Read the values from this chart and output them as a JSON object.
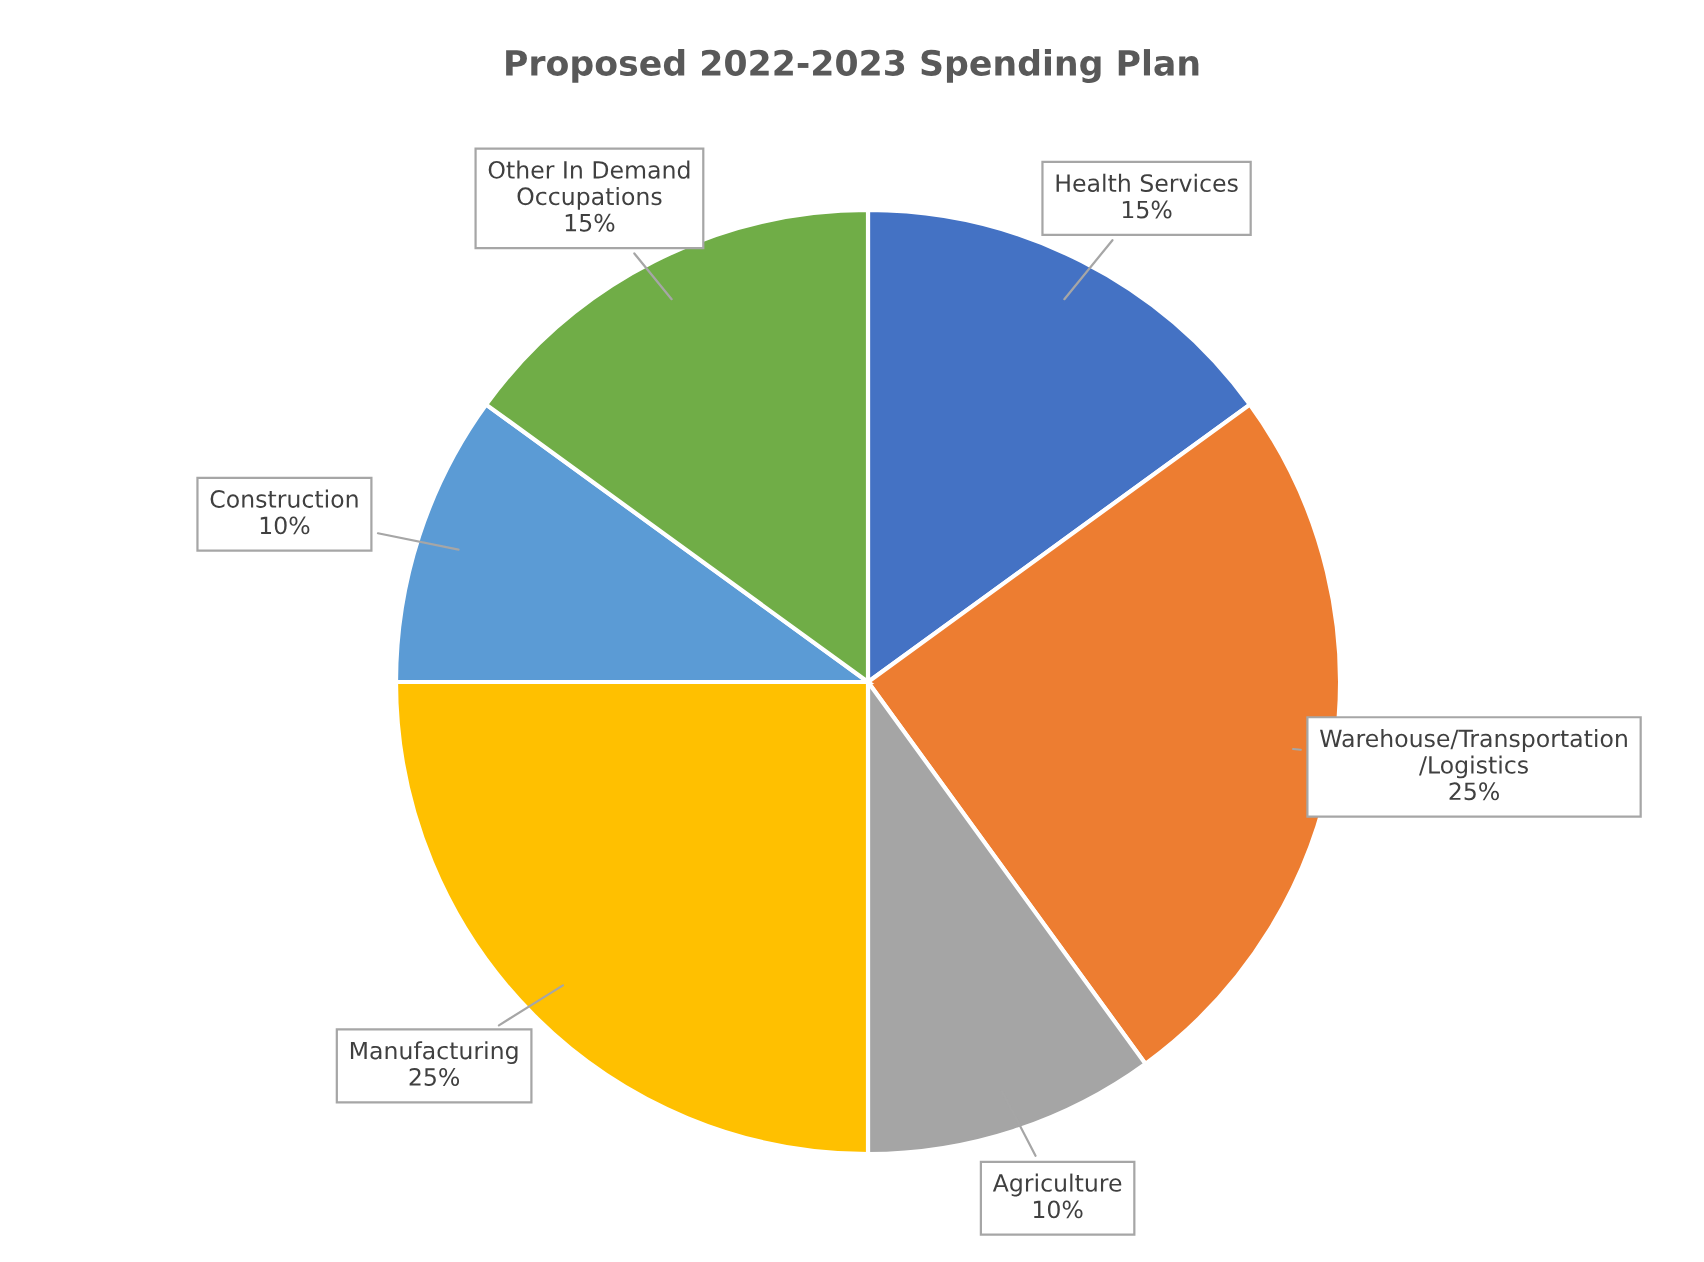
{
  "chart_data": {
    "type": "pie",
    "title": "Proposed 2022-2023 Spending Plan",
    "categories": [
      "Health Services",
      "Warehouse/Transportation\n/Logistics",
      "Agriculture",
      "Manufacturing",
      "Construction",
      "Other In Demand\nOccupations"
    ],
    "values": [
      15,
      25,
      10,
      25,
      10,
      15
    ],
    "colors": [
      "#4472c4",
      "#ed7d31",
      "#a5a5a5",
      "#ffc000",
      "#5b9bd5",
      "#70ad47"
    ],
    "value_labels": [
      "15%",
      "25%",
      "10%",
      "25%",
      "10%",
      "15%"
    ],
    "legend": false
  }
}
